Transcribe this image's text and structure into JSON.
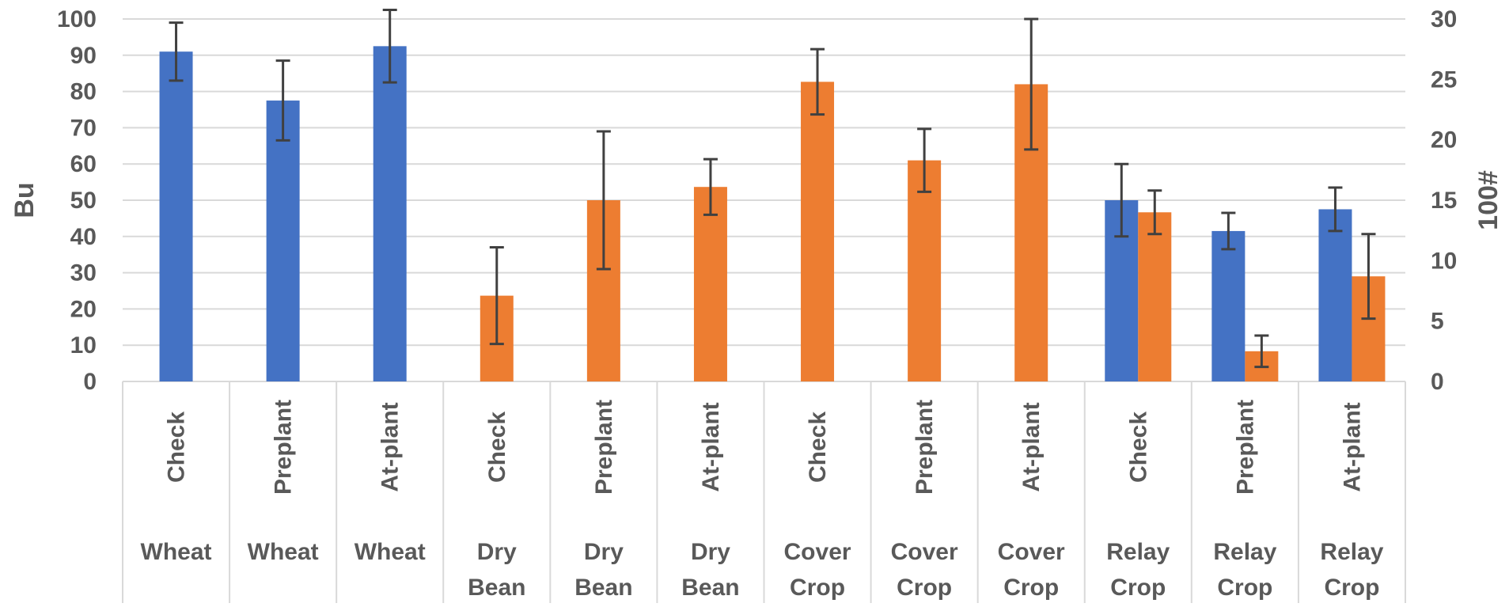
{
  "chart_data": {
    "type": "bar",
    "title": "",
    "ylabel": "Bu",
    "y2label": "100#",
    "ylim": [
      0,
      100
    ],
    "y2lim": [
      0,
      30
    ],
    "yticks": [
      "100",
      "90",
      "80",
      "70",
      "60",
      "50",
      "40",
      "30",
      "20",
      "10",
      "0"
    ],
    "y2ticks": [
      "30",
      "25",
      "20",
      "15",
      "10",
      "5",
      "0"
    ],
    "grid": true,
    "categories_level1": [
      "Check",
      "Preplant",
      "At-plant",
      "Check",
      "Preplant",
      "At-plant",
      "Check",
      "Preplant",
      "At-plant",
      "Check",
      "Preplant",
      "At-plant"
    ],
    "categories_level2": [
      "Wheat",
      "Wheat",
      "Wheat",
      "Dry Bean",
      "Dry Bean",
      "Dry Bean",
      "Cover Crop",
      "Cover Crop",
      "Cover Crop",
      "Relay Crop",
      "Relay Crop",
      "Relay Crop"
    ],
    "series": [
      {
        "axis": "left",
        "color": "#4472C4",
        "values": [
          91,
          77.5,
          92.5,
          null,
          null,
          null,
          null,
          null,
          null,
          50,
          41.5,
          47.5
        ],
        "error": [
          8,
          11,
          10,
          null,
          null,
          null,
          null,
          null,
          null,
          10,
          5,
          6
        ]
      },
      {
        "axis": "right",
        "color": "#ED7D31",
        "values": [
          null,
          null,
          null,
          7.1,
          15,
          16.1,
          24.8,
          18.3,
          24.6,
          14,
          2.5,
          8.7
        ],
        "error": [
          null,
          null,
          null,
          4,
          5.7,
          2.3,
          2.7,
          2.6,
          5.4,
          1.8,
          1.3,
          3.5
        ]
      }
    ]
  }
}
